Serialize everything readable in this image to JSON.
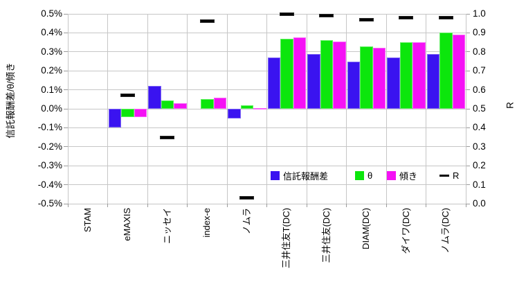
{
  "chart_data": {
    "type": "bar",
    "title": "",
    "categories": [
      "STAM",
      "eMAXIS",
      "ニッセイ",
      "index-e",
      "ノムラ",
      "三井住友T(DC)",
      "三井住友(DC)",
      "DIAM(DC)",
      "ダイワ(DC)",
      "ノムラ(DC)"
    ],
    "series": [
      {
        "name": "信託報酬差",
        "type": "bar",
        "axis": "left",
        "color": "#3a13f0",
        "values": [
          0,
          -0.1,
          0.12,
          0,
          -0.05,
          0.27,
          0.29,
          0.25,
          0.27,
          0.29
        ]
      },
      {
        "name": "θ",
        "type": "bar",
        "axis": "left",
        "color": "#0ce60c",
        "values": [
          0,
          -0.045,
          0.045,
          0.05,
          0.02,
          0.37,
          0.36,
          0.33,
          0.35,
          0.4
        ]
      },
      {
        "name": "傾き",
        "type": "bar",
        "axis": "left",
        "color": "#f511f5",
        "values": [
          0,
          -0.045,
          0.03,
          0.06,
          0.005,
          0.375,
          0.355,
          0.32,
          0.35,
          0.39
        ]
      },
      {
        "name": "R",
        "type": "dash-marker",
        "axis": "right",
        "color": "#000000",
        "values": [
          null,
          0.57,
          0.35,
          0.96,
          0.03,
          1.0,
          0.99,
          0.97,
          0.98,
          0.98
        ]
      }
    ],
    "left_axis": {
      "label": "信託報酬差/θ/傾き",
      "min": -0.5,
      "max": 0.5,
      "tick_step": 0.1,
      "unit": "%",
      "tick_labels": [
        "0.5%",
        "0.4%",
        "0.3%",
        "0.2%",
        "0.1%",
        "0.0%",
        "-0.1%",
        "-0.2%",
        "-0.3%",
        "-0.4%",
        "-0.5%"
      ]
    },
    "right_axis": {
      "label": "R",
      "min": 0.0,
      "max": 1.0,
      "tick_step": 0.1,
      "tick_labels": [
        "1.0",
        "0.9",
        "0.8",
        "0.7",
        "0.6",
        "0.5",
        "0.4",
        "0.3",
        "0.2",
        "0.1",
        "0.0"
      ]
    },
    "grid": true,
    "legend_position": "inside-bottom-right",
    "legend_items": [
      "信託報酬差",
      "θ",
      "傾き",
      "R"
    ],
    "colors": {
      "fee_diff_bar": "#3a13f0",
      "theta_bar": "#0ce60c",
      "slope_bar": "#f511f5",
      "r_marker": "#000000",
      "gridline": "#c6c6c6"
    }
  }
}
